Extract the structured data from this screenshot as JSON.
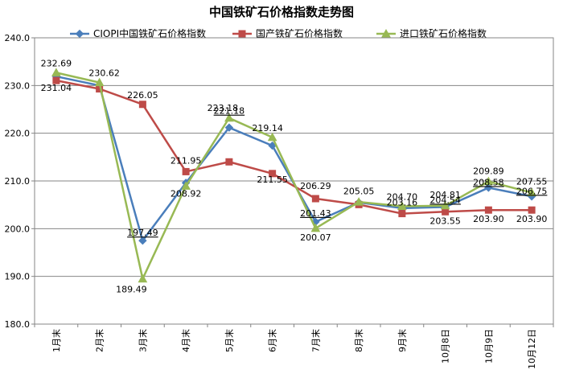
{
  "chart_data": {
    "type": "line",
    "title": "中国铁矿石价格指数走势图",
    "xlabel": "",
    "ylabel": "",
    "ylim": [
      180,
      240
    ],
    "yticks": [
      "180.0",
      "190.0",
      "200.0",
      "210.0",
      "220.0",
      "230.0",
      "240.0"
    ],
    "grid": true,
    "legend_position": "top",
    "categories": [
      "1月末",
      "2月末",
      "3月末",
      "4月末",
      "5月末",
      "6月末",
      "7月末",
      "8月末",
      "9月末",
      "10月8日",
      "10月9日",
      "10月12日"
    ],
    "series": [
      {
        "name": "CIOPI中国铁矿石价格指数",
        "color": "#4A7EBB",
        "marker": "diamond",
        "values": [
          231.9,
          230.0,
          197.49,
          209.6,
          221.18,
          217.4,
          201.43,
          205.5,
          204.3,
          204.54,
          208.58,
          206.75
        ],
        "labels": {
          "2": "197.49",
          "4": "221.18",
          "6": "201.43",
          "9": "204.54",
          "10": "208.58",
          "11": "206.75"
        }
      },
      {
        "name": "国产铁矿石价格指数",
        "color": "#BE4B48",
        "marker": "square",
        "values": [
          231.04,
          229.3,
          226.05,
          211.95,
          214.0,
          211.55,
          206.29,
          205.05,
          203.16,
          203.55,
          203.9,
          203.9
        ],
        "labels": {
          "0": "231.04",
          "2": "226.05",
          "3": "211.95",
          "5": "211.55",
          "6": "206.29",
          "7": "205.05",
          "8": "203.16",
          "9": "203.55",
          "10": "203.90",
          "11": "203.90"
        }
      },
      {
        "name": "进口铁矿石价格指数",
        "color": "#98B954",
        "marker": "triangle",
        "values": [
          232.69,
          230.62,
          189.49,
          208.92,
          223.18,
          219.14,
          200.07,
          205.6,
          204.7,
          204.81,
          209.89,
          207.55
        ],
        "labels": {
          "0": "232.69",
          "1": "230.62",
          "2": "189.49",
          "3": "208.92",
          "4": "223.18",
          "5": "219.14",
          "6": "200.07",
          "8": "204.70",
          "9": "204.81",
          "10": "209.89",
          "11": "207.55"
        }
      }
    ]
  }
}
